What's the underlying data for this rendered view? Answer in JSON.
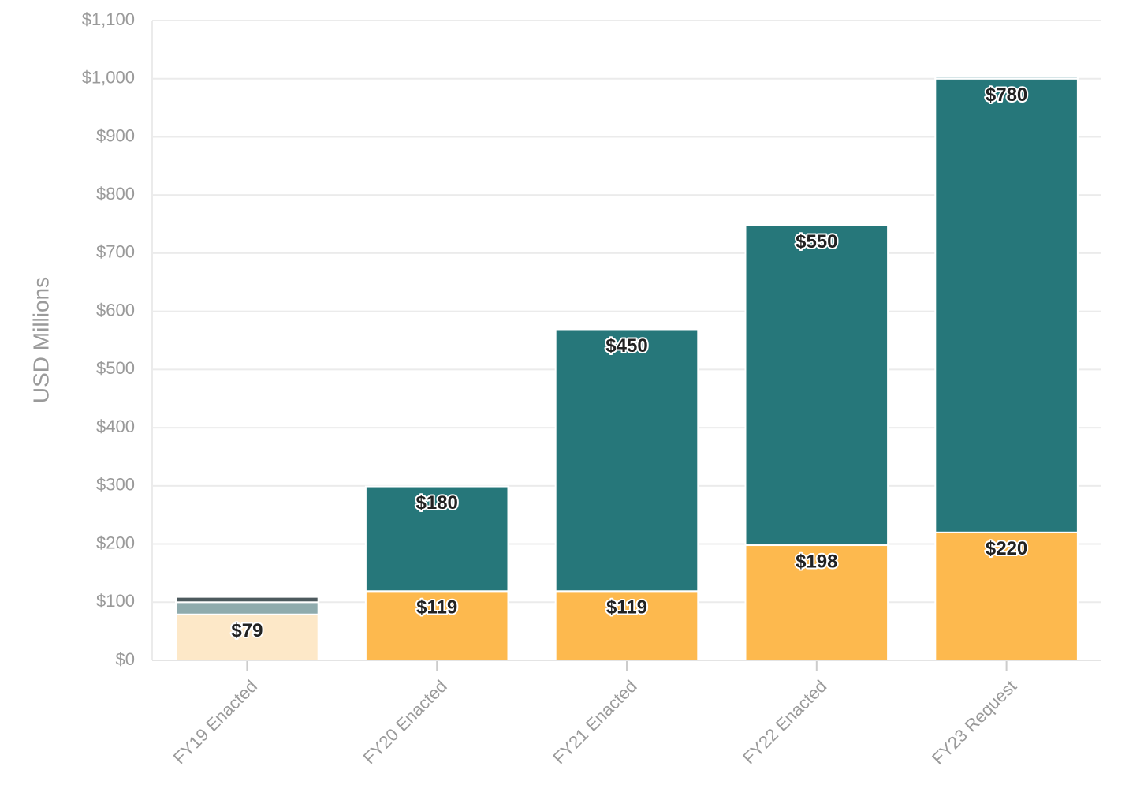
{
  "chart_data": {
    "type": "stacked-bar",
    "y_label": "USD Millions",
    "categories": [
      "FY19 Enacted",
      "FY20 Enacted",
      "FY21 Enacted",
      "FY22 Enacted",
      "FY23 Request"
    ],
    "series": [
      {
        "color": "#fde8c8",
        "values": [
          79,
          null,
          null,
          null,
          null
        ],
        "value_labels": [
          "$79",
          null,
          null,
          null,
          null
        ]
      },
      {
        "color": "#fdb94e",
        "values": [
          null,
          119,
          119,
          198,
          220
        ],
        "value_labels": [
          null,
          "$119",
          "$119",
          "$198",
          "$220"
        ]
      },
      {
        "color": "#8fabad",
        "values": [
          21,
          null,
          null,
          null,
          null
        ]
      },
      {
        "color": "#26777a",
        "values": [
          null,
          180,
          450,
          550,
          780
        ],
        "value_labels": [
          null,
          "$180",
          "$450",
          "$550",
          "$780"
        ]
      },
      {
        "color": "#4d5a5e",
        "values": [
          9,
          null,
          null,
          null,
          null
        ]
      },
      {
        "color": "#c8dde0",
        "values": [
          null,
          null,
          null,
          null,
          5
        ]
      }
    ],
    "ylim": [
      0,
      1100
    ],
    "yticks": [
      {
        "value": 0,
        "label": "$0"
      },
      {
        "value": 100,
        "label": "$100"
      },
      {
        "value": 200,
        "label": "$200"
      },
      {
        "value": 300,
        "label": "$300"
      },
      {
        "value": 400,
        "label": "$400"
      },
      {
        "value": 500,
        "label": "$500"
      },
      {
        "value": 600,
        "label": "$600"
      },
      {
        "value": 700,
        "label": "$700"
      },
      {
        "value": 800,
        "label": "$800"
      },
      {
        "value": 900,
        "label": "$900"
      },
      {
        "value": 1000,
        "label": "$1,000"
      },
      {
        "value": 1100,
        "label": "$1,100"
      }
    ],
    "grid": true
  }
}
